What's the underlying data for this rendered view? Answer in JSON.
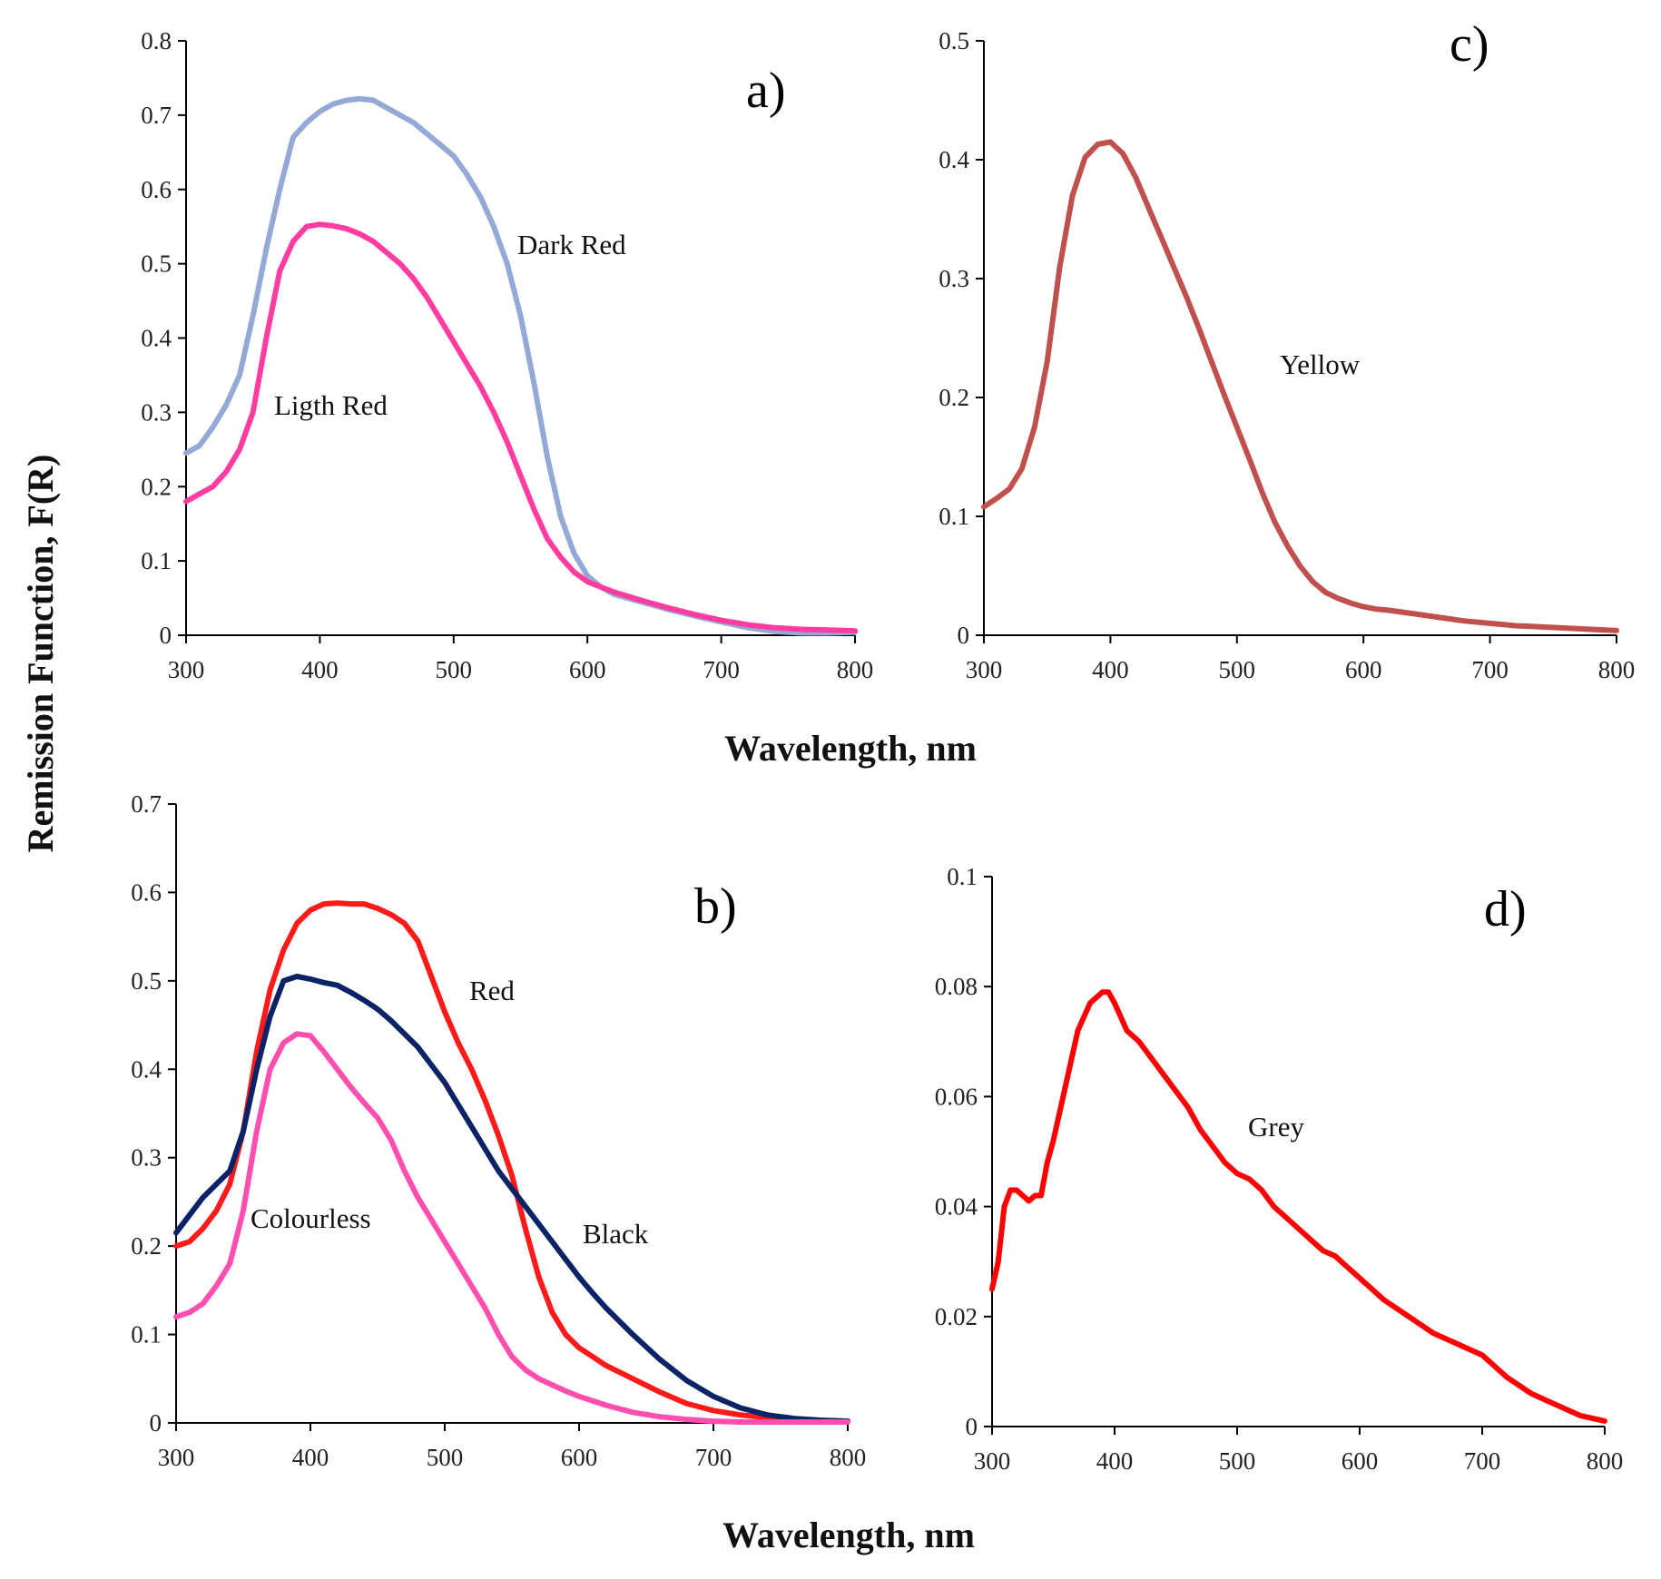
{
  "figure": {
    "ylabel": "Remission Function, F(R)",
    "xlabel_top": "Wavelength, nm",
    "xlabel_bottom": "Wavelength, nm"
  },
  "chart_data": [
    {
      "id": "a",
      "type": "line",
      "title": "a)",
      "xlabel": "Wavelength, nm",
      "ylabel": "Remission Function, F(R)",
      "xlim": [
        300,
        800
      ],
      "ylim": [
        0,
        0.8
      ],
      "xticks": [
        "300",
        "400",
        "500",
        "600",
        "700",
        "800"
      ],
      "yticks": [
        "0",
        "0.1",
        "0.2",
        "0.3",
        "0.4",
        "0.5",
        "0.6",
        "0.7",
        "0.8"
      ],
      "series": [
        {
          "name": "Dark Red",
          "color": "#94a9d6",
          "x": [
            300,
            310,
            320,
            330,
            340,
            350,
            360,
            370,
            380,
            390,
            400,
            410,
            420,
            430,
            440,
            450,
            460,
            470,
            480,
            490,
            500,
            510,
            520,
            530,
            540,
            550,
            560,
            570,
            580,
            590,
            600,
            610,
            620,
            640,
            660,
            680,
            700,
            720,
            740,
            760,
            780,
            800
          ],
          "values": [
            0.245,
            0.255,
            0.28,
            0.31,
            0.35,
            0.43,
            0.52,
            0.6,
            0.67,
            0.69,
            0.705,
            0.715,
            0.72,
            0.722,
            0.72,
            0.71,
            0.7,
            0.69,
            0.675,
            0.66,
            0.645,
            0.62,
            0.59,
            0.55,
            0.5,
            0.43,
            0.34,
            0.24,
            0.16,
            0.11,
            0.08,
            0.065,
            0.055,
            0.045,
            0.035,
            0.026,
            0.018,
            0.01,
            0.005,
            0.003,
            0.003,
            0.004
          ]
        },
        {
          "name": "Ligth Red",
          "color": "#ff3da0",
          "x": [
            300,
            310,
            320,
            330,
            340,
            350,
            360,
            370,
            380,
            390,
            400,
            410,
            420,
            430,
            440,
            450,
            460,
            470,
            480,
            490,
            500,
            510,
            520,
            530,
            540,
            550,
            560,
            570,
            580,
            590,
            600,
            610,
            620,
            640,
            660,
            680,
            700,
            720,
            740,
            760,
            780,
            800
          ],
          "values": [
            0.18,
            0.19,
            0.2,
            0.22,
            0.25,
            0.3,
            0.4,
            0.49,
            0.53,
            0.55,
            0.553,
            0.551,
            0.547,
            0.54,
            0.53,
            0.515,
            0.5,
            0.48,
            0.455,
            0.425,
            0.395,
            0.365,
            0.335,
            0.3,
            0.26,
            0.215,
            0.17,
            0.13,
            0.105,
            0.085,
            0.072,
            0.065,
            0.058,
            0.047,
            0.037,
            0.028,
            0.02,
            0.014,
            0.01,
            0.008,
            0.007,
            0.006
          ]
        }
      ]
    },
    {
      "id": "b",
      "type": "line",
      "title": "b)",
      "xlabel": "Wavelength, nm",
      "ylabel": "Remission Function, F(R)",
      "xlim": [
        300,
        800
      ],
      "ylim": [
        0,
        0.7
      ],
      "xticks": [
        "300",
        "400",
        "500",
        "600",
        "700",
        "800"
      ],
      "yticks": [
        "0",
        "0.1",
        "0.2",
        "0.3",
        "0.4",
        "0.5",
        "0.6",
        "0.7"
      ],
      "series": [
        {
          "name": "Red",
          "color": "#ff1a1a",
          "x": [
            300,
            310,
            320,
            330,
            340,
            350,
            360,
            370,
            380,
            390,
            400,
            410,
            420,
            430,
            440,
            450,
            460,
            470,
            480,
            490,
            500,
            510,
            520,
            530,
            540,
            550,
            560,
            570,
            580,
            590,
            600,
            610,
            620,
            640,
            660,
            680,
            700,
            720,
            740,
            760,
            780,
            800
          ],
          "values": [
            0.2,
            0.205,
            0.22,
            0.24,
            0.27,
            0.33,
            0.42,
            0.49,
            0.535,
            0.565,
            0.58,
            0.587,
            0.588,
            0.587,
            0.587,
            0.582,
            0.575,
            0.565,
            0.545,
            0.505,
            0.465,
            0.43,
            0.4,
            0.365,
            0.325,
            0.28,
            0.22,
            0.165,
            0.125,
            0.1,
            0.085,
            0.075,
            0.065,
            0.05,
            0.035,
            0.022,
            0.014,
            0.009,
            0.006,
            0.004,
            0.003,
            0.002
          ]
        },
        {
          "name": "Black",
          "color": "#0a2266",
          "x": [
            300,
            310,
            320,
            330,
            340,
            350,
            360,
            370,
            380,
            390,
            400,
            410,
            420,
            430,
            440,
            450,
            460,
            470,
            480,
            490,
            500,
            510,
            520,
            530,
            540,
            550,
            560,
            570,
            580,
            590,
            600,
            610,
            620,
            640,
            660,
            680,
            700,
            720,
            740,
            760,
            780,
            800
          ],
          "values": [
            0.215,
            0.235,
            0.255,
            0.27,
            0.285,
            0.33,
            0.4,
            0.46,
            0.5,
            0.505,
            0.502,
            0.498,
            0.495,
            0.487,
            0.478,
            0.468,
            0.455,
            0.44,
            0.425,
            0.405,
            0.385,
            0.36,
            0.335,
            0.31,
            0.285,
            0.265,
            0.245,
            0.225,
            0.205,
            0.185,
            0.165,
            0.147,
            0.13,
            0.1,
            0.072,
            0.048,
            0.03,
            0.017,
            0.009,
            0.005,
            0.003,
            0.002
          ]
        },
        {
          "name": "Colourless",
          "color": "#ff4db0",
          "x": [
            300,
            310,
            320,
            330,
            340,
            350,
            360,
            370,
            380,
            390,
            400,
            410,
            420,
            430,
            440,
            450,
            460,
            470,
            480,
            490,
            500,
            510,
            520,
            530,
            540,
            550,
            560,
            570,
            580,
            590,
            600,
            610,
            620,
            640,
            660,
            680,
            700,
            720,
            740,
            760,
            780,
            800
          ],
          "values": [
            0.12,
            0.125,
            0.135,
            0.155,
            0.18,
            0.24,
            0.33,
            0.4,
            0.43,
            0.44,
            0.438,
            0.42,
            0.4,
            0.38,
            0.362,
            0.345,
            0.32,
            0.285,
            0.255,
            0.23,
            0.205,
            0.18,
            0.155,
            0.13,
            0.1,
            0.075,
            0.06,
            0.05,
            0.043,
            0.036,
            0.03,
            0.025,
            0.02,
            0.012,
            0.007,
            0.004,
            0.002,
            0.001,
            0.001,
            0.001,
            0.001,
            0.001
          ]
        }
      ]
    },
    {
      "id": "c",
      "type": "line",
      "title": "c)",
      "xlabel": "Wavelength, nm",
      "ylabel": "Remission Function, F(R)",
      "xlim": [
        300,
        800
      ],
      "ylim": [
        0,
        0.5
      ],
      "xticks": [
        "300",
        "400",
        "500",
        "600",
        "700",
        "800"
      ],
      "yticks": [
        "0",
        "0.1",
        "0.2",
        "0.3",
        "0.4",
        "0.5"
      ],
      "series": [
        {
          "name": "Yellow",
          "color": "#c0504d",
          "x": [
            300,
            310,
            320,
            330,
            340,
            350,
            360,
            370,
            380,
            390,
            400,
            410,
            420,
            430,
            440,
            450,
            460,
            470,
            480,
            490,
            500,
            510,
            520,
            530,
            540,
            550,
            560,
            570,
            580,
            590,
            600,
            610,
            620,
            640,
            660,
            680,
            700,
            720,
            740,
            760,
            780,
            800
          ],
          "values": [
            0.108,
            0.115,
            0.123,
            0.14,
            0.175,
            0.23,
            0.31,
            0.37,
            0.402,
            0.413,
            0.415,
            0.405,
            0.385,
            0.36,
            0.335,
            0.31,
            0.285,
            0.258,
            0.23,
            0.202,
            0.175,
            0.148,
            0.12,
            0.095,
            0.075,
            0.058,
            0.045,
            0.036,
            0.031,
            0.027,
            0.024,
            0.022,
            0.021,
            0.018,
            0.015,
            0.012,
            0.01,
            0.008,
            0.007,
            0.006,
            0.005,
            0.004
          ]
        }
      ]
    },
    {
      "id": "d",
      "type": "line",
      "title": "d)",
      "xlabel": "Wavelength, nm",
      "ylabel": "Remission Function, F(R)",
      "xlim": [
        300,
        800
      ],
      "ylim": [
        0,
        0.1
      ],
      "xticks": [
        "300",
        "400",
        "500",
        "600",
        "700",
        "800"
      ],
      "yticks": [
        "0",
        "0.02",
        "0.04",
        "0.06",
        "0.08",
        "0.1"
      ],
      "series": [
        {
          "name": "Grey",
          "color": "#ff0000",
          "x": [
            300,
            305,
            310,
            315,
            320,
            325,
            330,
            335,
            340,
            345,
            350,
            360,
            370,
            380,
            390,
            395,
            400,
            410,
            420,
            430,
            440,
            450,
            460,
            470,
            480,
            490,
            500,
            510,
            520,
            530,
            540,
            550,
            560,
            570,
            580,
            590,
            600,
            620,
            640,
            660,
            680,
            700,
            720,
            740,
            760,
            780,
            800
          ],
          "values": [
            0.025,
            0.03,
            0.04,
            0.043,
            0.043,
            0.042,
            0.041,
            0.042,
            0.042,
            0.048,
            0.052,
            0.062,
            0.072,
            0.077,
            0.079,
            0.079,
            0.077,
            0.072,
            0.07,
            0.067,
            0.064,
            0.061,
            0.058,
            0.054,
            0.051,
            0.048,
            0.046,
            0.045,
            0.043,
            0.04,
            0.038,
            0.036,
            0.034,
            0.032,
            0.031,
            0.029,
            0.027,
            0.023,
            0.02,
            0.017,
            0.015,
            0.013,
            0.009,
            0.006,
            0.004,
            0.002,
            0.001
          ]
        }
      ]
    }
  ]
}
